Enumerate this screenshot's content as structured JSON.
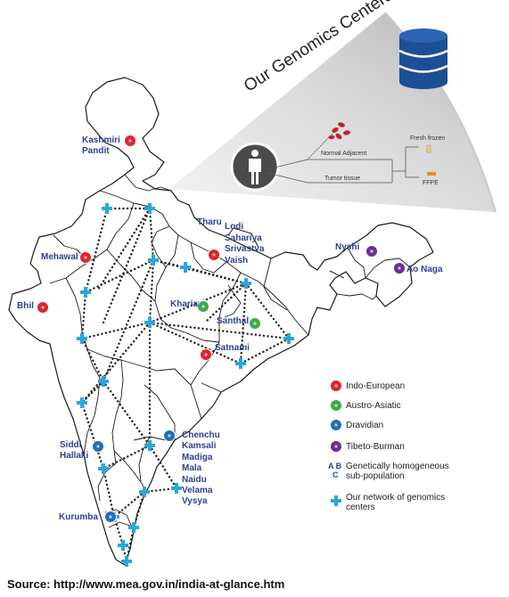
{
  "cone": {
    "title": "Our Genomics Centers",
    "normal_adjacent": "Normal Adjacent",
    "tumor_tissue": "Tumor tissue",
    "fresh_frozen": "Fresh frozen",
    "ffpe": "FFPE"
  },
  "populations": [
    {
      "text": "Kashmiri\nPandit"
    },
    {
      "text": "Mehawal"
    },
    {
      "text": "Bhil"
    },
    {
      "text": "Tharu"
    },
    {
      "text": "Lodi\nSahariya\nSrivastva\nVaish"
    },
    {
      "text": "Kharia"
    },
    {
      "text": "Santhal"
    },
    {
      "text": "Satnami"
    },
    {
      "text": "Nyshi"
    },
    {
      "text": "Ao Naga"
    },
    {
      "text": "Siddi\nHallaki"
    },
    {
      "text": "Chenchu\nKamsali\nMadiga\nMala\nNaidu\nVelama\nVysya"
    },
    {
      "text": "Kurumba"
    }
  ],
  "legend": {
    "indo_european": "Indo-European",
    "austro_asiatic": "Austro-Asiatic",
    "dravidian": "Dravidian",
    "tibeto_burman": "Tibeto-Burman",
    "ab_label": "A B",
    "c_label": "C",
    "genetically": "Genetically homogeneous\nsub-population",
    "network": "Our network of genomics\ncenters"
  },
  "colors": {
    "indo_european": "#e0242f",
    "austro_asiatic": "#3daa4a",
    "dravidian": "#1f6fb5",
    "tibeto_burman": "#6d2e91",
    "center_cross": "#2aa7d8",
    "label_blue": "#2e3f8f"
  },
  "source": "Source: http://www.mea.gov.in/india-at-glance.htm"
}
